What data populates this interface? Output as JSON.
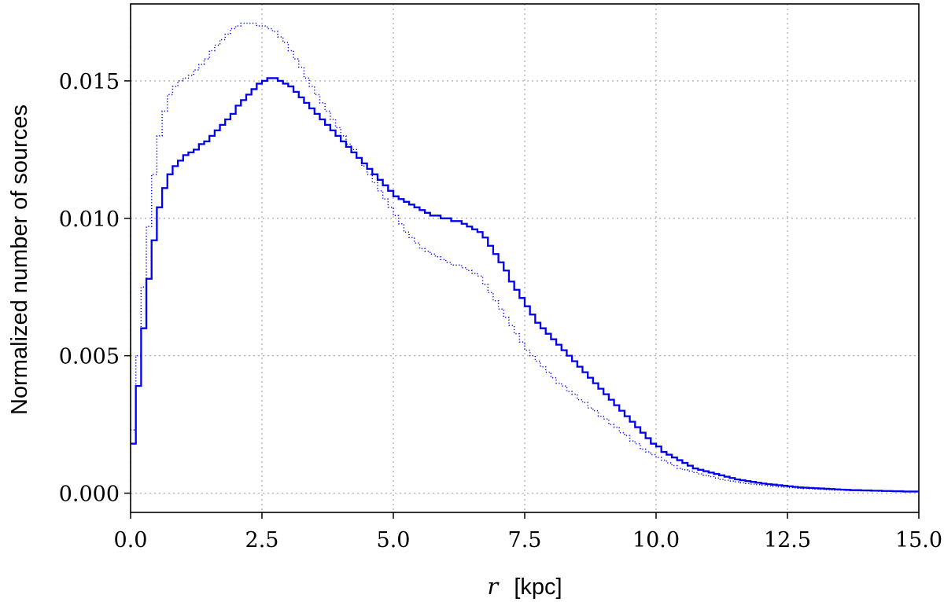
{
  "chart_data": {
    "type": "line",
    "step": true,
    "xlabel_var": "r",
    "xlabel_unit": "[kpc]",
    "ylabel": "Normalized number of sources",
    "xlim": [
      0.0,
      15.0
    ],
    "ylim": [
      -0.0007,
      0.0178
    ],
    "xticks": [
      "0.0",
      "2.5",
      "5.0",
      "7.5",
      "10.0",
      "12.5",
      "15.0"
    ],
    "yticks": [
      "0.000",
      "0.005",
      "0.010",
      "0.015"
    ],
    "grid": true,
    "color": "#0000ee",
    "series": [
      {
        "style": "solid",
        "points": [
          [
            0.05,
            0.0018
          ],
          [
            0.15,
            0.0039
          ],
          [
            0.25,
            0.006
          ],
          [
            0.35,
            0.0078
          ],
          [
            0.45,
            0.0092
          ],
          [
            0.55,
            0.0104
          ],
          [
            0.65,
            0.0111
          ],
          [
            0.75,
            0.0116
          ],
          [
            0.85,
            0.0119
          ],
          [
            0.95,
            0.0121
          ],
          [
            1.05,
            0.0123
          ],
          [
            1.15,
            0.0124
          ],
          [
            1.25,
            0.0125
          ],
          [
            1.35,
            0.0127
          ],
          [
            1.45,
            0.0128
          ],
          [
            1.55,
            0.013
          ],
          [
            1.65,
            0.0132
          ],
          [
            1.75,
            0.0134
          ],
          [
            1.85,
            0.0136
          ],
          [
            1.95,
            0.0138
          ],
          [
            2.05,
            0.0141
          ],
          [
            2.15,
            0.0143
          ],
          [
            2.25,
            0.0145
          ],
          [
            2.35,
            0.0147
          ],
          [
            2.45,
            0.0149
          ],
          [
            2.55,
            0.015
          ],
          [
            2.65,
            0.0151
          ],
          [
            2.75,
            0.0151
          ],
          [
            2.85,
            0.015
          ],
          [
            2.95,
            0.0149
          ],
          [
            3.05,
            0.0148
          ],
          [
            3.15,
            0.0146
          ],
          [
            3.25,
            0.0144
          ],
          [
            3.35,
            0.0142
          ],
          [
            3.45,
            0.014
          ],
          [
            3.55,
            0.0138
          ],
          [
            3.65,
            0.0136
          ],
          [
            3.75,
            0.0134
          ],
          [
            3.85,
            0.0132
          ],
          [
            3.95,
            0.013
          ],
          [
            4.05,
            0.0128
          ],
          [
            4.15,
            0.0126
          ],
          [
            4.25,
            0.0124
          ],
          [
            4.35,
            0.0122
          ],
          [
            4.45,
            0.012
          ],
          [
            4.55,
            0.0118
          ],
          [
            4.65,
            0.0116
          ],
          [
            4.75,
            0.0114
          ],
          [
            4.85,
            0.0112
          ],
          [
            4.95,
            0.011
          ],
          [
            5.05,
            0.0108
          ],
          [
            5.15,
            0.0107
          ],
          [
            5.25,
            0.0106
          ],
          [
            5.35,
            0.0105
          ],
          [
            5.45,
            0.0104
          ],
          [
            5.55,
            0.0103
          ],
          [
            5.65,
            0.0102
          ],
          [
            5.75,
            0.0101
          ],
          [
            5.85,
            0.0101
          ],
          [
            5.95,
            0.01
          ],
          [
            6.05,
            0.01
          ],
          [
            6.15,
            0.0099
          ],
          [
            6.25,
            0.0099
          ],
          [
            6.35,
            0.0098
          ],
          [
            6.45,
            0.0097
          ],
          [
            6.55,
            0.0096
          ],
          [
            6.65,
            0.0095
          ],
          [
            6.75,
            0.0093
          ],
          [
            6.85,
            0.009
          ],
          [
            6.95,
            0.0087
          ],
          [
            7.05,
            0.0084
          ],
          [
            7.15,
            0.0081
          ],
          [
            7.25,
            0.0077
          ],
          [
            7.35,
            0.0074
          ],
          [
            7.45,
            0.0071
          ],
          [
            7.55,
            0.0068
          ],
          [
            7.65,
            0.0065
          ],
          [
            7.75,
            0.0062
          ],
          [
            7.85,
            0.006
          ],
          [
            7.95,
            0.0058
          ],
          [
            8.05,
            0.0056
          ],
          [
            8.15,
            0.0054
          ],
          [
            8.25,
            0.0052
          ],
          [
            8.35,
            0.005
          ],
          [
            8.45,
            0.0048
          ],
          [
            8.55,
            0.0046
          ],
          [
            8.65,
            0.0044
          ],
          [
            8.75,
            0.0042
          ],
          [
            8.85,
            0.004
          ],
          [
            8.95,
            0.0038
          ],
          [
            9.05,
            0.0036
          ],
          [
            9.15,
            0.0034
          ],
          [
            9.25,
            0.0032
          ],
          [
            9.35,
            0.003
          ],
          [
            9.45,
            0.0028
          ],
          [
            9.55,
            0.0026
          ],
          [
            9.65,
            0.0024
          ],
          [
            9.75,
            0.0022
          ],
          [
            9.85,
            0.002
          ],
          [
            9.95,
            0.0018
          ],
          [
            10.05,
            0.0017
          ],
          [
            10.15,
            0.0015
          ],
          [
            10.25,
            0.0014
          ],
          [
            10.35,
            0.0013
          ],
          [
            10.45,
            0.0012
          ],
          [
            10.55,
            0.0011
          ],
          [
            10.65,
            0.001
          ],
          [
            10.75,
            0.0009
          ],
          [
            10.85,
            0.00085
          ],
          [
            10.95,
            0.0008
          ],
          [
            11.05,
            0.00075
          ],
          [
            11.15,
            0.0007
          ],
          [
            11.25,
            0.00065
          ],
          [
            11.35,
            0.0006
          ],
          [
            11.45,
            0.00055
          ],
          [
            11.55,
            0.0005
          ],
          [
            11.65,
            0.00047
          ],
          [
            11.75,
            0.00044
          ],
          [
            11.85,
            0.00041
          ],
          [
            11.95,
            0.00038
          ],
          [
            12.05,
            0.00035
          ],
          [
            12.15,
            0.00033
          ],
          [
            12.25,
            0.00031
          ],
          [
            12.35,
            0.00029
          ],
          [
            12.45,
            0.00027
          ],
          [
            12.55,
            0.00025
          ],
          [
            12.65,
            0.00023
          ],
          [
            12.75,
            0.00021
          ],
          [
            12.85,
            0.0002
          ],
          [
            12.95,
            0.00019
          ],
          [
            13.05,
            0.00018
          ],
          [
            13.15,
            0.00017
          ],
          [
            13.25,
            0.00016
          ],
          [
            13.35,
            0.00015
          ],
          [
            13.45,
            0.00014
          ],
          [
            13.55,
            0.00013
          ],
          [
            13.65,
            0.00012
          ],
          [
            13.75,
            0.00011
          ],
          [
            13.85,
            0.00011
          ],
          [
            13.95,
            0.0001
          ],
          [
            14.05,
            0.0001
          ],
          [
            14.15,
            9e-05
          ],
          [
            14.25,
            9e-05
          ],
          [
            14.35,
            8e-05
          ],
          [
            14.45,
            8e-05
          ],
          [
            14.55,
            7e-05
          ],
          [
            14.65,
            7e-05
          ],
          [
            14.75,
            6e-05
          ],
          [
            14.85,
            6e-05
          ],
          [
            14.95,
            6e-05
          ]
        ]
      },
      {
        "style": "dotted",
        "points": [
          [
            0.05,
            0.0023
          ],
          [
            0.15,
            0.005
          ],
          [
            0.25,
            0.0075
          ],
          [
            0.35,
            0.0097
          ],
          [
            0.45,
            0.0116
          ],
          [
            0.55,
            0.013
          ],
          [
            0.65,
            0.0139
          ],
          [
            0.75,
            0.0145
          ],
          [
            0.85,
            0.0148
          ],
          [
            0.95,
            0.015
          ],
          [
            1.05,
            0.0151
          ],
          [
            1.15,
            0.0152
          ],
          [
            1.25,
            0.0154
          ],
          [
            1.35,
            0.0156
          ],
          [
            1.45,
            0.0158
          ],
          [
            1.55,
            0.0161
          ],
          [
            1.65,
            0.0163
          ],
          [
            1.75,
            0.0165
          ],
          [
            1.85,
            0.0167
          ],
          [
            1.95,
            0.0169
          ],
          [
            2.05,
            0.017
          ],
          [
            2.15,
            0.0171
          ],
          [
            2.25,
            0.0171
          ],
          [
            2.35,
            0.0171
          ],
          [
            2.45,
            0.017
          ],
          [
            2.55,
            0.017
          ],
          [
            2.65,
            0.0169
          ],
          [
            2.75,
            0.0168
          ],
          [
            2.85,
            0.0166
          ],
          [
            2.95,
            0.0164
          ],
          [
            3.05,
            0.0161
          ],
          [
            3.15,
            0.0158
          ],
          [
            3.25,
            0.0155
          ],
          [
            3.35,
            0.0151
          ],
          [
            3.45,
            0.0148
          ],
          [
            3.55,
            0.0145
          ],
          [
            3.65,
            0.0142
          ],
          [
            3.75,
            0.0139
          ],
          [
            3.85,
            0.0136
          ],
          [
            3.95,
            0.0133
          ],
          [
            4.05,
            0.013
          ],
          [
            4.15,
            0.0127
          ],
          [
            4.25,
            0.0125
          ],
          [
            4.35,
            0.0122
          ],
          [
            4.45,
            0.0119
          ],
          [
            4.55,
            0.0116
          ],
          [
            4.65,
            0.0113
          ],
          [
            4.75,
            0.011
          ],
          [
            4.85,
            0.0107
          ],
          [
            4.95,
            0.0104
          ],
          [
            5.05,
            0.0101
          ],
          [
            5.15,
            0.0098
          ],
          [
            5.25,
            0.0095
          ],
          [
            5.35,
            0.0093
          ],
          [
            5.45,
            0.0091
          ],
          [
            5.55,
            0.0089
          ],
          [
            5.65,
            0.0088
          ],
          [
            5.75,
            0.0087
          ],
          [
            5.85,
            0.0086
          ],
          [
            5.95,
            0.0085
          ],
          [
            6.05,
            0.0084
          ],
          [
            6.15,
            0.0083
          ],
          [
            6.25,
            0.0083
          ],
          [
            6.35,
            0.0082
          ],
          [
            6.45,
            0.0081
          ],
          [
            6.55,
            0.008
          ],
          [
            6.65,
            0.0079
          ],
          [
            6.75,
            0.0076
          ],
          [
            6.85,
            0.0073
          ],
          [
            6.95,
            0.007
          ],
          [
            7.05,
            0.0067
          ],
          [
            7.15,
            0.0064
          ],
          [
            7.25,
            0.0061
          ],
          [
            7.35,
            0.0058
          ],
          [
            7.45,
            0.0055
          ],
          [
            7.55,
            0.0052
          ],
          [
            7.65,
            0.005
          ],
          [
            7.75,
            0.0048
          ],
          [
            7.85,
            0.0046
          ],
          [
            7.95,
            0.0044
          ],
          [
            8.05,
            0.0042
          ],
          [
            8.15,
            0.004
          ],
          [
            8.25,
            0.0039
          ],
          [
            8.35,
            0.0037
          ],
          [
            8.45,
            0.0036
          ],
          [
            8.55,
            0.0034
          ],
          [
            8.65,
            0.0033
          ],
          [
            8.75,
            0.0031
          ],
          [
            8.85,
            0.003
          ],
          [
            8.95,
            0.0028
          ],
          [
            9.05,
            0.0027
          ],
          [
            9.15,
            0.0025
          ],
          [
            9.25,
            0.0024
          ],
          [
            9.35,
            0.0022
          ],
          [
            9.45,
            0.0021
          ],
          [
            9.55,
            0.0019
          ],
          [
            9.65,
            0.0018
          ],
          [
            9.75,
            0.0016
          ],
          [
            9.85,
            0.0015
          ],
          [
            9.95,
            0.0014
          ],
          [
            10.05,
            0.0013
          ],
          [
            10.15,
            0.0012
          ],
          [
            10.25,
            0.0011
          ],
          [
            10.35,
            0.001
          ],
          [
            10.45,
            0.0009
          ],
          [
            10.55,
            0.00085
          ],
          [
            10.65,
            0.0008
          ],
          [
            10.75,
            0.00075
          ],
          [
            10.85,
            0.0007
          ],
          [
            10.95,
            0.00065
          ],
          [
            11.05,
            0.0006
          ],
          [
            11.15,
            0.00055
          ],
          [
            11.25,
            0.0005
          ],
          [
            11.35,
            0.00047
          ],
          [
            11.45,
            0.00044
          ],
          [
            11.55,
            0.00041
          ],
          [
            11.65,
            0.00038
          ],
          [
            11.75,
            0.00035
          ],
          [
            11.85,
            0.00033
          ],
          [
            11.95,
            0.00031
          ],
          [
            12.05,
            0.00029
          ],
          [
            12.15,
            0.00027
          ],
          [
            12.25,
            0.00025
          ],
          [
            12.35,
            0.00023
          ],
          [
            12.45,
            0.00022
          ],
          [
            12.55,
            0.0002
          ],
          [
            12.65,
            0.00019
          ],
          [
            12.75,
            0.00018
          ],
          [
            12.85,
            0.00017
          ],
          [
            12.95,
            0.00016
          ],
          [
            13.05,
            0.00015
          ],
          [
            13.15,
            0.00014
          ],
          [
            13.25,
            0.00013
          ],
          [
            13.35,
            0.00012
          ],
          [
            13.45,
            0.00011
          ],
          [
            13.55,
            0.00011
          ],
          [
            13.65,
            0.0001
          ],
          [
            13.75,
            0.0001
          ],
          [
            13.85,
            9e-05
          ],
          [
            13.95,
            9e-05
          ],
          [
            14.05,
            8e-05
          ],
          [
            14.15,
            8e-05
          ],
          [
            14.25,
            7e-05
          ],
          [
            14.35,
            7e-05
          ],
          [
            14.45,
            6e-05
          ],
          [
            14.55,
            6e-05
          ],
          [
            14.65,
            6e-05
          ],
          [
            14.75,
            5e-05
          ],
          [
            14.85,
            5e-05
          ],
          [
            14.95,
            5e-05
          ]
        ]
      }
    ]
  }
}
